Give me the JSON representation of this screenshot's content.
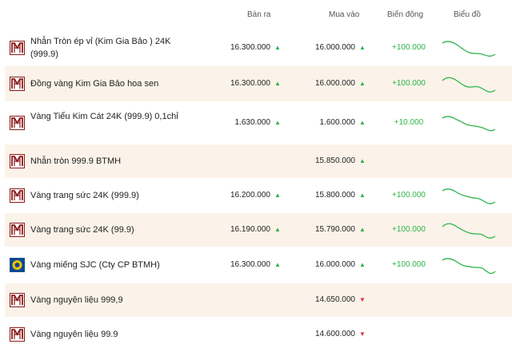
{
  "headers": {
    "sell": "Bán ra",
    "buy": "Mua vào",
    "change": "Biến động",
    "chart": "Biểu đồ"
  },
  "colors": {
    "row_alt": "#fbf3e9",
    "up": "#2db34a",
    "down": "#e0323c",
    "logo": "#8b1a1a"
  },
  "rows": [
    {
      "name": "Nhẫn Tròn ép vỉ (Kim Gia Bảo ) 24K (999.9)",
      "logo": "btmh-logo-icon",
      "sell": "16.300.000",
      "sell_dir": "▲",
      "buy": "16.000.000",
      "buy_dir": "▲",
      "change": "+100.000",
      "chart": true
    },
    {
      "name": "Đồng vàng Kim Gia Bảo hoa sen",
      "logo": "btmh-logo-icon",
      "sell": "16.300.000",
      "sell_dir": "▲",
      "buy": "16.000.000",
      "buy_dir": "▲",
      "change": "+100.000",
      "chart": true
    },
    {
      "name": "Vàng Tiểu Kim Cát 24K (999.9) 0,1chỉ",
      "logo": "btmh-logo-icon",
      "sell": "1.630.000",
      "sell_dir": "▲",
      "buy": "1.600.000",
      "buy_dir": "▲",
      "change": "+10.000",
      "chart": true
    },
    {
      "name": "Nhẫn tròn 999.9 BTMH",
      "logo": "btmh-logo-icon",
      "sell": "",
      "sell_dir": "",
      "buy": "15.850.000",
      "buy_dir": "▲",
      "change": "",
      "chart": false
    },
    {
      "name": "Vàng trang sức 24K (999.9)",
      "logo": "btmh-logo-icon",
      "sell": "16.200.000",
      "sell_dir": "▲",
      "buy": "15.800.000",
      "buy_dir": "▲",
      "change": "+100.000",
      "chart": true
    },
    {
      "name": "Vàng trang sức 24K (99.9)",
      "logo": "btmh-logo-icon",
      "sell": "16.190.000",
      "sell_dir": "▲",
      "buy": "15.790.000",
      "buy_dir": "▲",
      "change": "+100.000",
      "chart": true
    },
    {
      "name": "Vàng miếng SJC (Cty CP BTMH)",
      "logo": "sjc-logo-icon",
      "sell": "16.300.000",
      "sell_dir": "▲",
      "buy": "16.000.000",
      "buy_dir": "▲",
      "change": "+100.000",
      "chart": true
    },
    {
      "name": "Vàng nguyên liệu 999,9",
      "logo": "btmh-logo-icon",
      "sell": "",
      "sell_dir": "",
      "buy": "14.650.000",
      "buy_dir": "▼",
      "change": "",
      "chart": false
    },
    {
      "name": "Vàng nguyên liệu 99.9",
      "logo": "btmh-logo-icon",
      "sell": "",
      "sell_dir": "",
      "buy": "14.600.000",
      "buy_dir": "▼",
      "change": "",
      "chart": false
    }
  ]
}
